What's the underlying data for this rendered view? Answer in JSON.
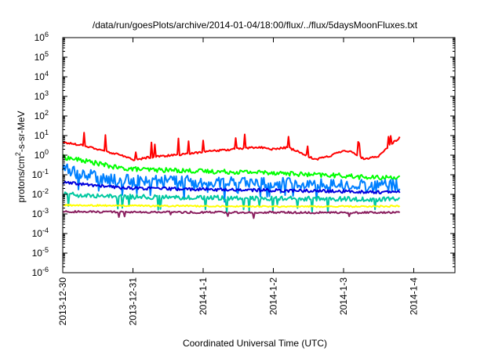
{
  "chart_data": {
    "type": "line",
    "title": "/data/run/goesPlots/archive/2014-01-04/18:00/flux/../flux/5daysMoonFluxes.txt",
    "xlabel": "Coordinated Universal Time (UTC)",
    "ylabel_parts": [
      "protons/cm",
      "2",
      "-s-sr-MeV"
    ],
    "y_scale": "log",
    "ylim": [
      1e-06,
      1000000.0
    ],
    "y_ticks": [
      {
        "base": "10",
        "exp": "-6",
        "value": 1e-06
      },
      {
        "base": "10",
        "exp": "-5",
        "value": 1e-05
      },
      {
        "base": "10",
        "exp": "-4",
        "value": 0.0001
      },
      {
        "base": "10",
        "exp": "-3",
        "value": 0.001
      },
      {
        "base": "10",
        "exp": "-2",
        "value": 0.01
      },
      {
        "base": "10",
        "exp": "-1",
        "value": 0.1
      },
      {
        "base": "10",
        "exp": "0",
        "value": 1
      },
      {
        "base": "10",
        "exp": "1",
        "value": 10
      },
      {
        "base": "10",
        "exp": "2",
        "value": 100
      },
      {
        "base": "10",
        "exp": "3",
        "value": 1000
      },
      {
        "base": "10",
        "exp": "4",
        "value": 10000
      },
      {
        "base": "10",
        "exp": "5",
        "value": 100000
      },
      {
        "base": "10",
        "exp": "6",
        "value": 1000000
      }
    ],
    "x_ticks": [
      "2013-12-30",
      "2013-12-31",
      "2014-1-1",
      "2014-1-2",
      "2014-1-3",
      "2014-1-4"
    ],
    "x_range_days": [
      0,
      4.8
    ],
    "grid": false,
    "series": [
      {
        "color": "#ff0000",
        "noise": 0.05,
        "spikes": 0.06,
        "spikeAmp": 0.8,
        "points": [
          [
            0,
            4.5
          ],
          [
            0.3,
            3.2
          ],
          [
            0.6,
            1.6
          ],
          [
            0.9,
            0.85
          ],
          [
            1.0,
            0.55
          ],
          [
            1.2,
            0.75
          ],
          [
            1.4,
            0.9
          ],
          [
            1.6,
            1.0
          ],
          [
            1.8,
            1.2
          ],
          [
            2.0,
            1.5
          ],
          [
            2.3,
            1.8
          ],
          [
            2.6,
            2.3
          ],
          [
            2.8,
            2.5
          ],
          [
            3.0,
            2.0
          ],
          [
            3.2,
            2.5
          ],
          [
            3.4,
            1.3
          ],
          [
            3.6,
            0.6
          ],
          [
            3.8,
            0.9
          ],
          [
            4.0,
            1.8
          ],
          [
            4.1,
            1.5
          ],
          [
            4.2,
            1.0
          ],
          [
            4.3,
            0.6
          ],
          [
            4.5,
            0.9
          ],
          [
            4.65,
            3.0
          ],
          [
            4.8,
            8.0
          ]
        ]
      },
      {
        "color": "#00ff00",
        "noise": 0.12,
        "spikes": 0.0,
        "spikeAmp": 0,
        "points": [
          [
            0,
            0.8
          ],
          [
            0.4,
            0.45
          ],
          [
            0.8,
            0.22
          ],
          [
            1.2,
            0.18
          ],
          [
            1.6,
            0.17
          ],
          [
            2.0,
            0.15
          ],
          [
            2.5,
            0.14
          ],
          [
            3.0,
            0.13
          ],
          [
            3.5,
            0.1
          ],
          [
            4.0,
            0.09
          ],
          [
            4.4,
            0.07
          ],
          [
            4.8,
            0.075
          ]
        ]
      },
      {
        "color": "#0080ff",
        "noise": 0.3,
        "spikes": 0.05,
        "spikeAmp": -0.8,
        "points": [
          [
            0,
            0.22
          ],
          [
            0.3,
            0.12
          ],
          [
            0.6,
            0.06
          ],
          [
            1.0,
            0.05
          ],
          [
            1.5,
            0.05
          ],
          [
            2.0,
            0.045
          ],
          [
            2.5,
            0.04
          ],
          [
            3.0,
            0.04
          ],
          [
            3.5,
            0.035
          ],
          [
            4.0,
            0.03
          ],
          [
            4.5,
            0.028
          ],
          [
            4.8,
            0.03
          ]
        ]
      },
      {
        "color": "#0000dd",
        "noise": 0.08,
        "spikes": 0.0,
        "spikeAmp": 0,
        "points": [
          [
            0,
            0.04
          ],
          [
            0.4,
            0.03
          ],
          [
            0.8,
            0.022
          ],
          [
            1.2,
            0.02
          ],
          [
            1.6,
            0.019
          ],
          [
            2.0,
            0.018
          ],
          [
            2.5,
            0.017
          ],
          [
            3.0,
            0.016
          ],
          [
            3.5,
            0.015
          ],
          [
            4.0,
            0.014
          ],
          [
            4.5,
            0.013
          ],
          [
            4.8,
            0.013
          ]
        ]
      },
      {
        "color": "#00c8a0",
        "noise": 0.12,
        "spikes": 0.05,
        "spikeAmp": -0.7,
        "points": [
          [
            0,
            0.01
          ],
          [
            0.5,
            0.0085
          ],
          [
            1.0,
            0.0075
          ],
          [
            1.5,
            0.007
          ],
          [
            2.0,
            0.0068
          ],
          [
            2.5,
            0.0065
          ],
          [
            3.0,
            0.0062
          ],
          [
            3.5,
            0.006
          ],
          [
            4.0,
            0.0058
          ],
          [
            4.5,
            0.0055
          ],
          [
            4.8,
            0.0056
          ]
        ]
      },
      {
        "color": "#ffff00",
        "noise": 0.04,
        "spikes": 0.0,
        "spikeAmp": 0,
        "points": [
          [
            0,
            0.0028
          ],
          [
            1.0,
            0.0026
          ],
          [
            2.0,
            0.0025
          ],
          [
            3.0,
            0.0024
          ],
          [
            4.0,
            0.0024
          ],
          [
            4.8,
            0.0025
          ]
        ]
      },
      {
        "color": "#8b2060",
        "noise": 0.05,
        "spikes": 0.02,
        "spikeAmp": -0.3,
        "points": [
          [
            0,
            0.0013
          ],
          [
            1.0,
            0.00125
          ],
          [
            2.0,
            0.0012
          ],
          [
            3.0,
            0.0012
          ],
          [
            4.0,
            0.00115
          ],
          [
            4.8,
            0.0012
          ]
        ]
      }
    ]
  }
}
